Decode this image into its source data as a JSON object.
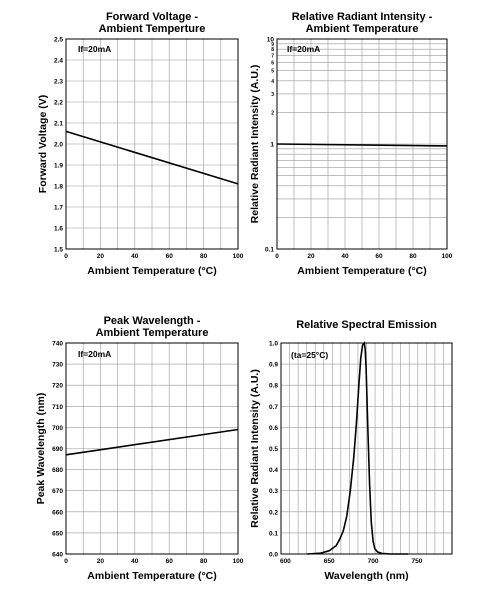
{
  "chart_data": [
    {
      "type": "line",
      "title": [
        "Forward Voltage -",
        "Ambient Temperture"
      ],
      "xlabel": "Ambient Temperature (°C)",
      "ylabel": "Forward Voltage (V)",
      "annotation": "If=20mA",
      "xlim": [
        0,
        100
      ],
      "ylim": [
        1.5,
        2.5
      ],
      "x_ticks": [
        "0",
        "20",
        "40",
        "60",
        "80",
        "100"
      ],
      "y_ticks": [
        "1.5",
        "1.6",
        "1.7",
        "1.8",
        "1.9",
        "2.0",
        "2.1",
        "2.2",
        "2.3",
        "2.4",
        "2.5"
      ],
      "grid": true,
      "x": [
        0,
        100
      ],
      "y": [
        2.06,
        1.81
      ]
    },
    {
      "type": "line",
      "title": [
        "Relative Radiant Intensity -",
        "Ambient Temperature"
      ],
      "xlabel": "Ambient Temperature (°C)",
      "ylabel": "Relative Radiant Intensity (A.U.)",
      "annotation": "If=20mA",
      "xlim": [
        0,
        100
      ],
      "ylim": [
        0.1,
        10
      ],
      "y_scale": "log",
      "x_ticks": [
        "0",
        "20",
        "40",
        "60",
        "80",
        "100"
      ],
      "y_ticks": [
        "0.1",
        "1",
        "10"
      ],
      "y_minor_labels": [
        "2",
        "3",
        "4",
        "5",
        "6",
        "7",
        "8",
        "9"
      ],
      "grid": true,
      "x": [
        0,
        100
      ],
      "y": [
        1.0,
        0.96
      ]
    },
    {
      "type": "line",
      "title": [
        "Peak Wavelength -",
        "Ambient Temperature"
      ],
      "xlabel": "Ambient Temperature (°C)",
      "ylabel": "Peak Wavelength (nm)",
      "annotation": "If=20mA",
      "xlim": [
        0,
        100
      ],
      "ylim": [
        640,
        740
      ],
      "x_ticks": [
        "0",
        "20",
        "40",
        "60",
        "80",
        "100"
      ],
      "y_ticks": [
        "640",
        "650",
        "660",
        "670",
        "680",
        "690",
        "700",
        "710",
        "720",
        "730",
        "740"
      ],
      "grid": true,
      "x": [
        0,
        100
      ],
      "y": [
        687,
        699
      ]
    },
    {
      "type": "line",
      "title": [
        "Relative Spectral Emission"
      ],
      "xlabel": "Wavelength (nm)",
      "ylabel": "Relative Radiant Intensity (A.U.)",
      "annotation": "(ta=25°C)",
      "xlim": [
        595,
        790
      ],
      "ylim": [
        0,
        1
      ],
      "x_ticks": [
        "600",
        "650",
        "700",
        "750"
      ],
      "y_ticks": [
        "0.0",
        "0.1",
        "0.2",
        "0.3",
        "0.4",
        "0.5",
        "0.6",
        "0.7",
        "0.8",
        "0.9",
        "1.0"
      ],
      "grid": true,
      "x": [
        625,
        640,
        650,
        658,
        662,
        666,
        670,
        674,
        678,
        681,
        684,
        686,
        688,
        690,
        691,
        692,
        694,
        696,
        698,
        700,
        702,
        705,
        710,
        720,
        740
      ],
      "y": [
        0.0,
        0.004,
        0.015,
        0.04,
        0.07,
        0.11,
        0.18,
        0.3,
        0.46,
        0.62,
        0.81,
        0.93,
        0.99,
        1.0,
        0.97,
        0.88,
        0.6,
        0.33,
        0.15,
        0.06,
        0.025,
        0.01,
        0.003,
        0.0,
        0.0
      ]
    }
  ]
}
